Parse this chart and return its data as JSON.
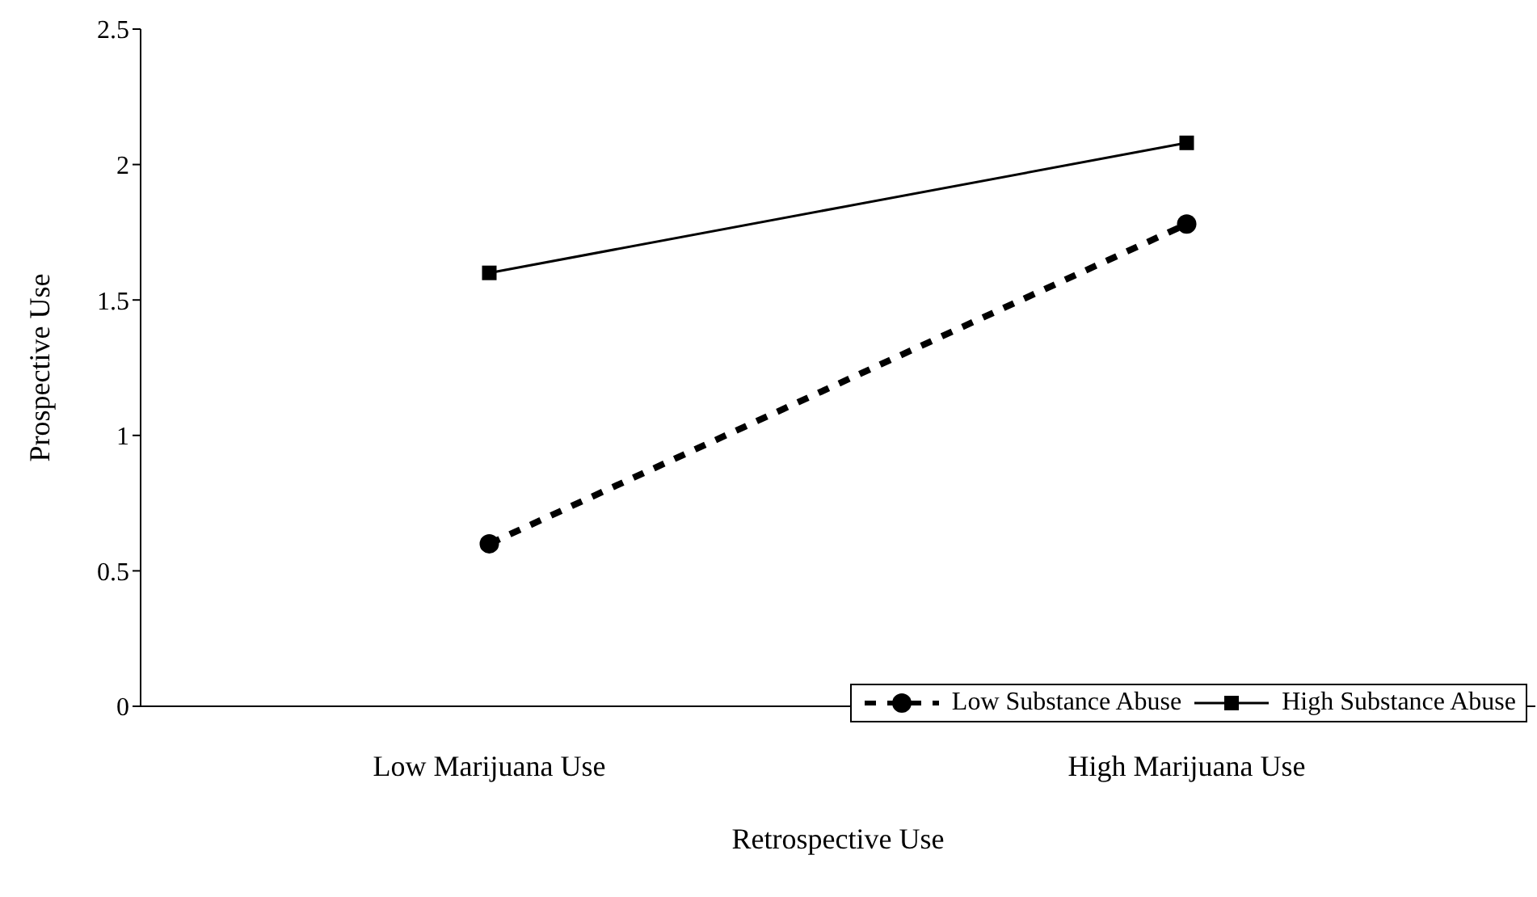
{
  "chart_data": {
    "type": "line",
    "xlabel": "Retrospective Use",
    "ylabel": "Prospective Use",
    "categories": [
      "Low Marijuana Use",
      "High Marijuana Use"
    ],
    "series": [
      {
        "name": "Low Substance Abuse",
        "color": "#000000",
        "values": [
          0.6,
          1.78
        ],
        "marker": "circle",
        "line_style": "dashed"
      },
      {
        "name": "High Substance Abuse",
        "color": "#000000",
        "values": [
          1.6,
          2.08
        ],
        "marker": "square",
        "line_style": "solid"
      }
    ],
    "ylim": [
      0,
      2.5
    ],
    "yticks": [
      0,
      0.5,
      1,
      1.5,
      2,
      2.5
    ],
    "grid": false,
    "legend": "bottom right"
  }
}
